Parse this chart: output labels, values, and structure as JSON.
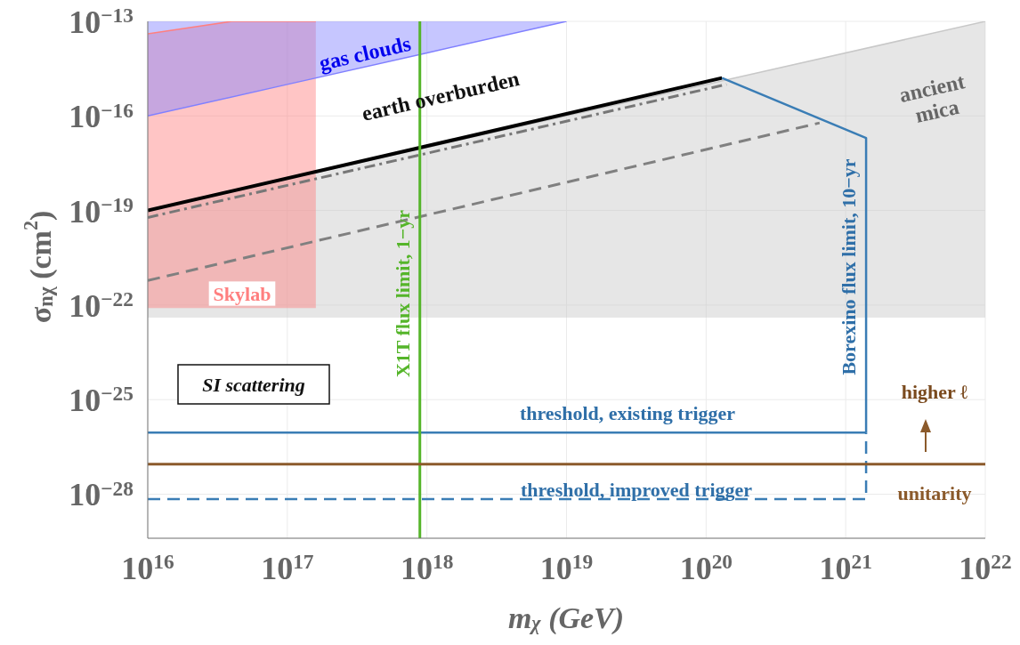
{
  "chart_data": {
    "type": "line",
    "xlabel": "m$_{χ}$ (GeV)",
    "ylabel": "σ$_{nχ}$ (cm$^{2}$)",
    "log": "xy",
    "grid": true,
    "legend": false,
    "xlim": [
      1e+16,
      1e+22
    ],
    "ylim": [
      4e-30,
      1e-13
    ],
    "xticks": [
      {
        "value": 1e+16,
        "label": "10$^{16}$"
      },
      {
        "value": 1e+17,
        "label": "10$^{17}$"
      },
      {
        "value": 1e+18,
        "label": "10$^{18}$"
      },
      {
        "value": 1e+19,
        "label": "10$^{19}$"
      },
      {
        "value": 1e+20,
        "label": "10$^{20}$"
      },
      {
        "value": 1e+21,
        "label": "10$^{21}$"
      },
      {
        "value": 1e+22,
        "label": "10$^{22}$"
      }
    ],
    "yticks": [
      {
        "value": 1e-28,
        "label": "10$^{−28}$"
      },
      {
        "value": 1e-25,
        "label": "10$^{−25}$"
      },
      {
        "value": 1e-22,
        "label": "10$^{−22}$"
      },
      {
        "value": 1e-19,
        "label": "10$^{−19}$"
      },
      {
        "value": 1e-16,
        "label": "10$^{−16}$"
      },
      {
        "value": 1e-13,
        "label": "10$^{−13}$"
      }
    ],
    "series": [
      {
        "name": "ancient mica",
        "color": "#c8c8c8",
        "x": [
          1e+16,
          1e+22
        ],
        "values": [
          1e-19,
          1e-13
        ],
        "lower": [
          4e-23,
          4e-23
        ],
        "upper": [
          1e-19,
          1e-13
        ]
      },
      {
        "name": "Skylab",
        "color": "#ff7f7f",
        "x": [
          1e+16,
          4e+16,
          1.6e+17
        ],
        "values": [
          4e-14,
          1e-13,
          1e-13
        ],
        "lower": [
          8e-23,
          8e-23,
          8e-23
        ],
        "upper": [
          4e-14,
          1e-13,
          1e-13
        ]
      },
      {
        "name": "gas clouds",
        "color": "#8080ff",
        "x": [
          1e+16,
          1e+17,
          1e+18,
          1e+19
        ],
        "values": [
          1e-16,
          1e-15,
          1e-14,
          1e-13
        ],
        "lower": [
          1e-16,
          1e-15,
          1e-14,
          1e-13
        ],
        "upper": [
          1e-13,
          1e-13,
          1e-13,
          1e-13
        ]
      },
      {
        "name": "earth overburden",
        "color": "#000000",
        "x": [
          1e+16,
          1.3e+20
        ],
        "values": [
          1e-19,
          1.6e-15
        ]
      },
      {
        "color": "#777777",
        "line_style": "dashdot",
        "x": [
          1e+16,
          1.4e+20
        ],
        "values": [
          6e-20,
          1e-15
        ]
      },
      {
        "color": "#808080",
        "line_style": "dashed",
        "x": [
          1e+16,
          6.5e+20
        ],
        "values": [
          6e-22,
          6e-17
        ]
      },
      {
        "name": "Borexino flux limit, 10−yr",
        "color": "#3a7db5",
        "x": [
          1.3e+20,
          1.4e+21,
          1.4e+21
        ],
        "values": [
          1.6e-15,
          2e-17,
          9e-27
        ]
      },
      {
        "name": "threshold, existing trigger",
        "color": "#3a7db5",
        "x": [
          1e+16,
          1.4e+21
        ],
        "values": [
          9e-27,
          9e-27
        ]
      },
      {
        "name": "threshold, improved trigger",
        "color": "#3a7db5",
        "line_style": "dashed",
        "x": [
          1e+16,
          1.4e+21,
          1.4e+21
        ],
        "values": [
          7e-29,
          7e-29,
          9e-27
        ]
      }
    ],
    "ref_lines": [
      {
        "axis": "x",
        "value": 8.9e+17,
        "label": "X1T flux limit, 1−yr",
        "color": "#55b52a"
      },
      {
        "axis": "y",
        "value": 9e-28,
        "label": "unitarity",
        "color": "#8b5a2b"
      }
    ],
    "annotations": [
      "SI scattering",
      "higher ℓ"
    ]
  }
}
